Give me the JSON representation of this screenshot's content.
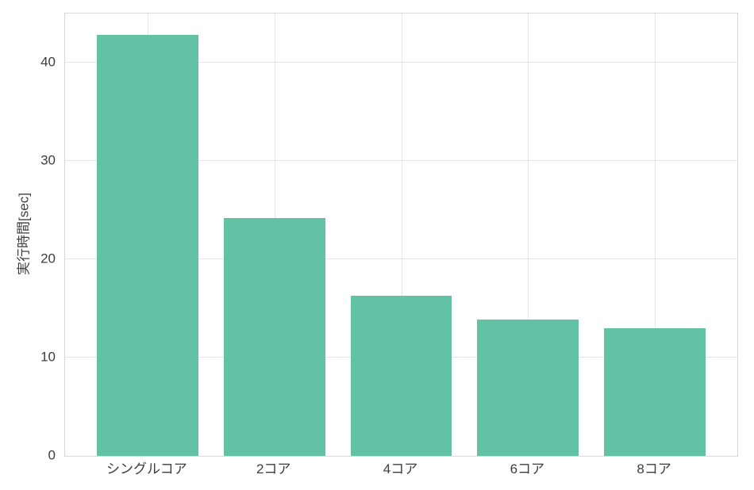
{
  "chart_data": {
    "type": "bar",
    "title": "",
    "xlabel": "",
    "ylabel": "実行時間[sec]",
    "categories": [
      "シングルコア",
      "2コア",
      "4コア",
      "6コア",
      "8コア"
    ],
    "values": [
      42.8,
      24.2,
      16.3,
      13.9,
      13.0
    ],
    "ylim": [
      0,
      45
    ],
    "yticks": [
      0,
      10,
      20,
      30,
      40
    ],
    "grid": "on",
    "legend_position": "none",
    "colors": {
      "bar": "#63c2a4",
      "gridline": "#e4e4e4",
      "spine": "#d9d9d9",
      "tick_text": "#3d3d3d",
      "background": "#ffffff"
    }
  }
}
